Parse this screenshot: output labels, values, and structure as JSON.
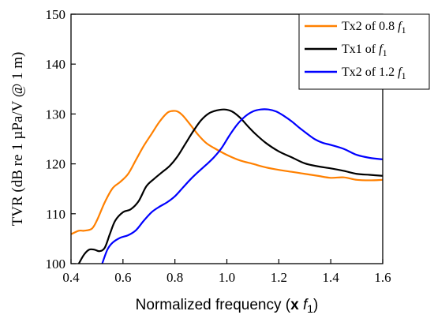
{
  "chart_data": {
    "type": "line",
    "xlabel": "Normalized frequency (x f1)",
    "xlabel_parts": {
      "prefix": "Normalized frequency (",
      "times": "x",
      "var": "f",
      "sub": "1",
      "suffix": ")"
    },
    "ylabel": "TVR (dB re 1 µPa/V @ 1 m)",
    "xlim": [
      0.4,
      1.6
    ],
    "ylim": [
      100,
      150
    ],
    "xticks": [
      0.4,
      0.6,
      0.8,
      1.0,
      1.2,
      1.4,
      1.6
    ],
    "xtick_labels": [
      "0.4",
      "0.6",
      "0.8",
      "1.0",
      "1.2",
      "1.4",
      "1.6"
    ],
    "yticks": [
      100,
      110,
      120,
      130,
      140,
      150
    ],
    "ytick_labels": [
      "100",
      "110",
      "120",
      "130",
      "140",
      "150"
    ],
    "grid": false,
    "legend_position": "top-right",
    "series": [
      {
        "name": "Tx2 of 0.8 f1",
        "label_prefix": "Tx2 of 0.8 ",
        "label_var": "f",
        "label_sub": "1",
        "color": "#ff8000",
        "x": [
          0.4,
          0.43,
          0.45,
          0.48,
          0.5,
          0.53,
          0.56,
          0.59,
          0.62,
          0.65,
          0.68,
          0.71,
          0.74,
          0.77,
          0.79,
          0.81,
          0.83,
          0.86,
          0.89,
          0.92,
          0.95,
          1.0,
          1.05,
          1.1,
          1.15,
          1.2,
          1.25,
          1.3,
          1.35,
          1.4,
          1.45,
          1.5,
          1.55,
          1.6
        ],
        "y": [
          105.9,
          106.6,
          106.6,
          107.0,
          108.7,
          112.3,
          115.1,
          116.4,
          118.0,
          120.8,
          123.6,
          126.0,
          128.4,
          130.2,
          130.6,
          130.5,
          129.7,
          127.8,
          125.8,
          124.2,
          123.2,
          121.8,
          120.7,
          120.0,
          119.3,
          118.8,
          118.4,
          118.0,
          117.6,
          117.2,
          117.3,
          116.8,
          116.7,
          116.8
        ]
      },
      {
        "name": "Tx1 of f1",
        "label_prefix": "Tx1 of ",
        "label_var": "f",
        "label_sub": "1",
        "color": "#000000",
        "x": [
          0.43,
          0.45,
          0.47,
          0.49,
          0.51,
          0.53,
          0.55,
          0.57,
          0.6,
          0.63,
          0.66,
          0.69,
          0.72,
          0.75,
          0.78,
          0.81,
          0.84,
          0.87,
          0.9,
          0.93,
          0.96,
          0.99,
          1.02,
          1.05,
          1.08,
          1.11,
          1.15,
          1.2,
          1.25,
          1.3,
          1.35,
          1.4,
          1.45,
          1.5,
          1.55,
          1.6
        ],
        "y": [
          100.0,
          101.8,
          102.8,
          102.8,
          102.5,
          103.2,
          106.0,
          108.6,
          110.3,
          110.9,
          112.5,
          115.5,
          117.0,
          118.3,
          119.6,
          121.5,
          124.0,
          126.5,
          128.7,
          130.1,
          130.7,
          130.9,
          130.5,
          129.3,
          127.6,
          126.0,
          124.2,
          122.5,
          121.3,
          120.1,
          119.5,
          119.1,
          118.6,
          118.0,
          117.8,
          117.6
        ]
      },
      {
        "name": "Tx2 of 1.2 f1",
        "label_prefix": "Tx2 of 1.2 ",
        "label_var": "f",
        "label_sub": "1",
        "color": "#0000ff",
        "x": [
          0.52,
          0.54,
          0.56,
          0.59,
          0.62,
          0.65,
          0.68,
          0.71,
          0.74,
          0.77,
          0.8,
          0.83,
          0.86,
          0.89,
          0.92,
          0.95,
          0.98,
          1.01,
          1.04,
          1.07,
          1.1,
          1.13,
          1.16,
          1.19,
          1.22,
          1.25,
          1.28,
          1.31,
          1.34,
          1.37,
          1.4,
          1.45,
          1.5,
          1.55,
          1.6
        ],
        "y": [
          100.0,
          102.8,
          104.2,
          105.2,
          105.7,
          106.7,
          108.6,
          110.3,
          111.4,
          112.3,
          113.5,
          115.2,
          116.9,
          118.4,
          119.8,
          121.3,
          123.2,
          125.7,
          127.9,
          129.5,
          130.5,
          130.9,
          130.9,
          130.5,
          129.6,
          128.5,
          127.2,
          126.0,
          124.9,
          124.2,
          123.8,
          123.0,
          121.8,
          121.2,
          120.9
        ]
      }
    ]
  }
}
